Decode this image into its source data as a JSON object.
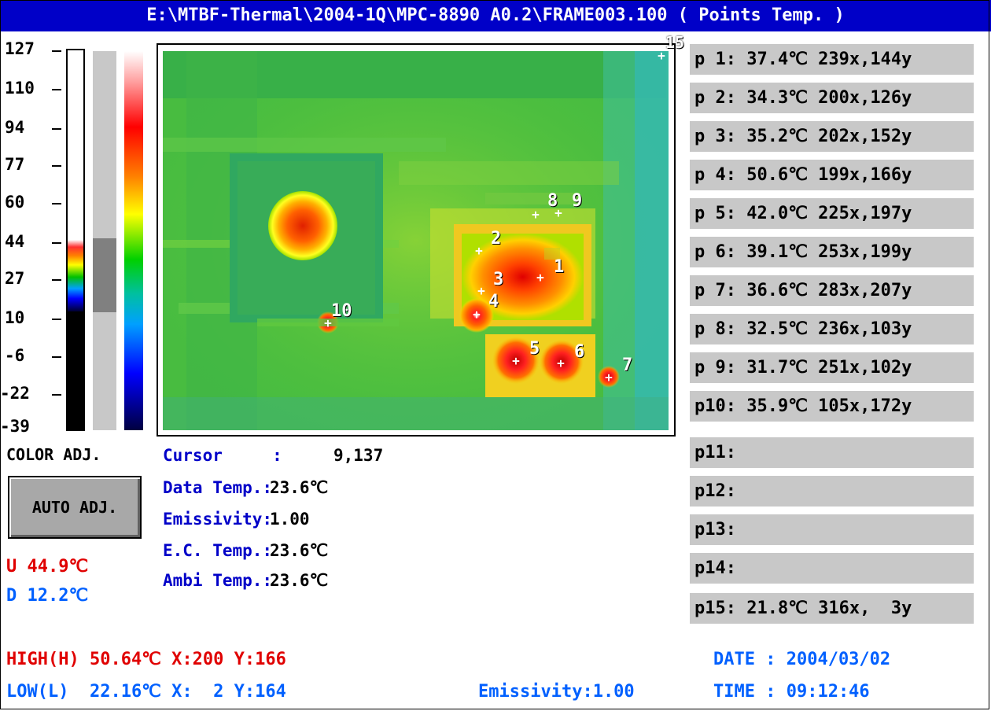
{
  "title": "E:\\MTBF-Thermal\\2004-1Q\\MPC-8890 A0.2\\FRAME003.100 ( Points Temp. )",
  "scale": {
    "labels": [
      "127",
      "110",
      "94",
      "77",
      "60",
      "44",
      "27",
      "10",
      "-6",
      "-22",
      "-39"
    ]
  },
  "color_adj_label": "COLOR ADJ.",
  "auto_adj_label": "AUTO ADJ.",
  "upper_temp": "U 44.9℃",
  "lower_temp": "D 12.2℃",
  "info": {
    "cursor_label": "Cursor     :",
    "cursor_value": "9,137",
    "data_temp_label": "Data Temp.:",
    "data_temp_value": "23.6℃",
    "emissivity_label": "Emissivity:",
    "emissivity_value": "1.00",
    "ec_temp_label": "E.C. Temp.:",
    "ec_temp_value": "23.6℃",
    "ambi_temp_label": "Ambi Temp.:",
    "ambi_temp_value": "23.6℃"
  },
  "thermal_points": [
    "1",
    "2",
    "3",
    "4",
    "5",
    "6",
    "7",
    "8",
    "9",
    "10",
    "15"
  ],
  "points": [
    "p 1: 37.4℃ 239x,144y",
    "p 2: 34.3℃ 200x,126y",
    "p 3: 35.2℃ 202x,152y",
    "p 4: 50.6℃ 199x,166y",
    "p 5: 42.0℃ 225x,197y",
    "p 6: 39.1℃ 253x,199y",
    "p 7: 36.6℃ 283x,207y",
    "p 8: 32.5℃ 236x,103y",
    "p 9: 31.7℃ 251x,102y",
    "p10: 35.9℃ 105x,172y",
    "p11:",
    "p12:",
    "p13:",
    "p14:",
    "p15: 21.8℃ 316x,  3y"
  ],
  "high": "HIGH(H) 50.64℃ X:200 Y:166",
  "low": "LOW(L)  22.16℃ X:  2 Y:164",
  "bottom_emissivity": "Emissivity:1.00",
  "date": "DATE : 2004/03/02",
  "time": "TIME : 09:12:46",
  "colors": {
    "title_bg": "#0000c8",
    "label_blue": "#0000c8",
    "high_red": "#e00000",
    "low_blue": "#0060ff",
    "row_gray": "#c8c8c8"
  }
}
